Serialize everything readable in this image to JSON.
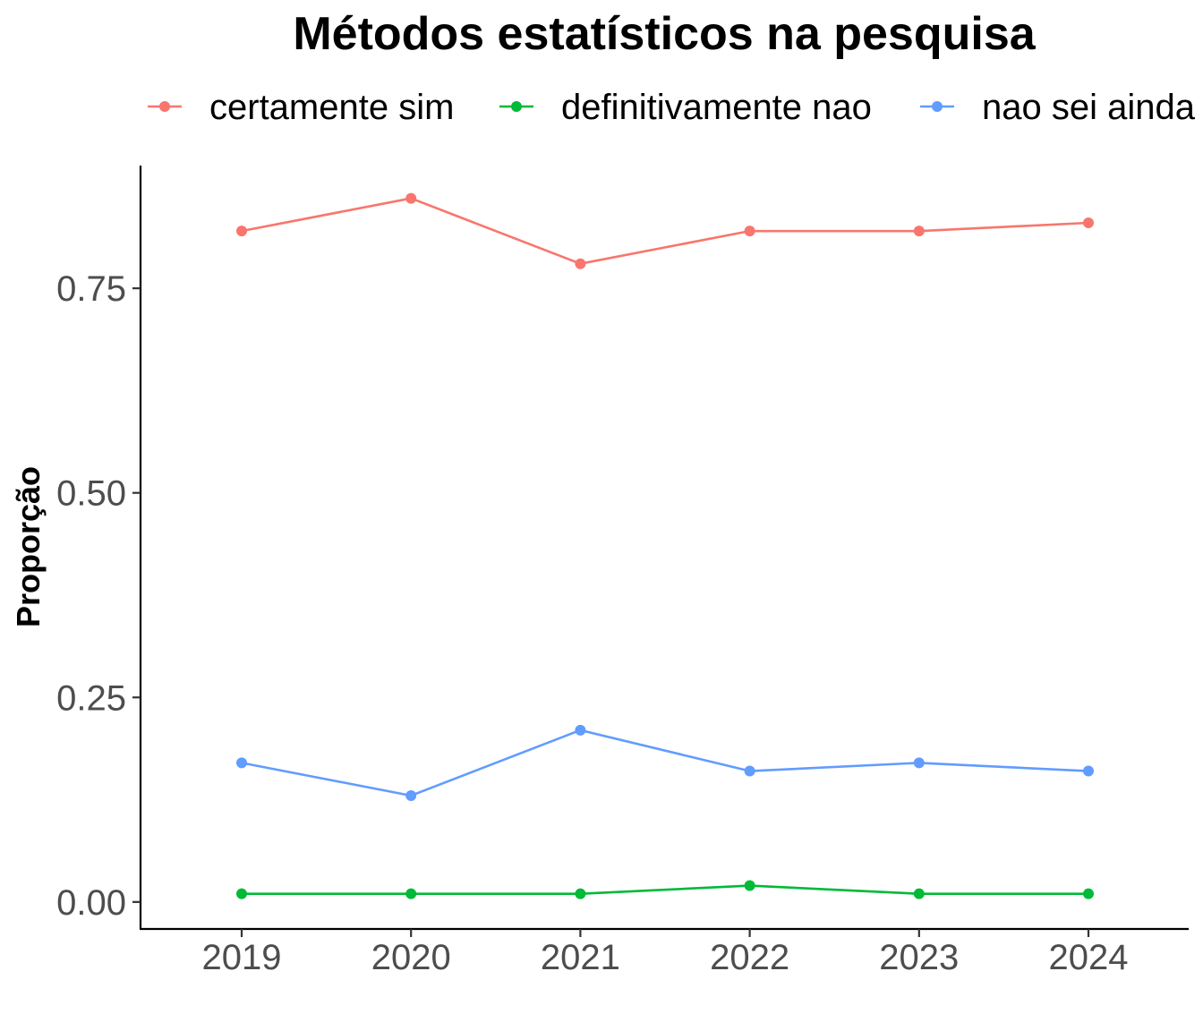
{
  "chart_data": {
    "type": "line",
    "title": "Métodos estatísticos na pesquisa",
    "xlabel": "",
    "ylabel": "Proporção",
    "x": [
      "2019",
      "2020",
      "2021",
      "2022",
      "2023",
      "2024"
    ],
    "y_ticks": [
      "0.00",
      "0.25",
      "0.50",
      "0.75"
    ],
    "y_tick_values": [
      0,
      0.25,
      0.5,
      0.75
    ],
    "ylim": [
      -0.033,
      0.9
    ],
    "grid": false,
    "legend_position": "top",
    "series": [
      {
        "name": "certamente sim",
        "color": "#F8766D",
        "values": [
          0.82,
          0.86,
          0.78,
          0.82,
          0.82,
          0.83
        ]
      },
      {
        "name": "definitivamente nao",
        "color": "#00BA38",
        "values": [
          0.01,
          0.01,
          0.01,
          0.02,
          0.01,
          0.01
        ]
      },
      {
        "name": "nao sei ainda",
        "color": "#619CFF",
        "values": [
          0.17,
          0.13,
          0.21,
          0.16,
          0.17,
          0.16
        ]
      }
    ]
  }
}
